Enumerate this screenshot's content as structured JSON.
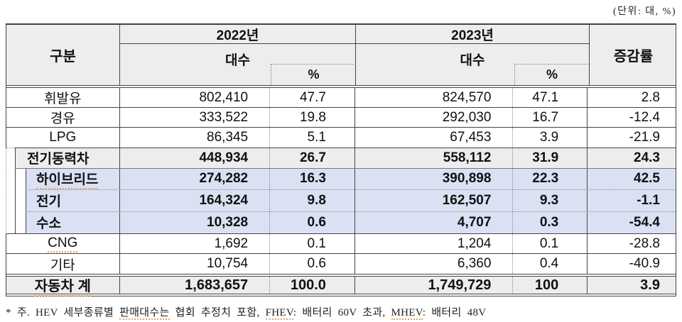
{
  "unit_label": "(단위: 대, %)",
  "table": {
    "header": {
      "category": "구분",
      "year_2022": "2022년",
      "year_2023": "2023년",
      "count_2022": "대수",
      "percent_2022": "%",
      "count_2023": "대수",
      "percent_2023": "%",
      "change_rate": "증감률"
    },
    "rows_top": [
      {
        "key": "gasoline",
        "label": "휘발유",
        "count_2022": "802,410",
        "pct_2022": "47.7",
        "count_2023": "824,570",
        "pct_2023": "47.1",
        "change": "2.8"
      },
      {
        "key": "diesel",
        "label": "경유",
        "count_2022": "333,522",
        "pct_2022": "19.8",
        "count_2023": "292,030",
        "pct_2023": "16.7",
        "change": "-12.4"
      },
      {
        "key": "lpg",
        "label": "LPG",
        "count_2022": "86,345",
        "pct_2022": "5.1",
        "count_2023": "67,453",
        "pct_2023": "3.9",
        "change": "-21.9"
      }
    ],
    "group_head": {
      "key": "ev-group",
      "label": "전기동력차",
      "count_2022": "448,934",
      "pct_2022": "26.7",
      "count_2023": "558,112",
      "pct_2023": "31.9",
      "change": "24.3"
    },
    "group_subs": [
      {
        "key": "hybrid",
        "label": "하이브리드",
        "underlined": true,
        "count_2022": "274,282",
        "pct_2022": "16.3",
        "count_2023": "390,898",
        "pct_2023": "22.3",
        "change": "42.5"
      },
      {
        "key": "electric",
        "label": "전기",
        "count_2022": "164,324",
        "pct_2022": "9.8",
        "count_2023": "162,507",
        "pct_2023": "9.3",
        "change": "-1.1"
      },
      {
        "key": "hydrogen",
        "label": "수소",
        "count_2022": "10,328",
        "pct_2022": "0.6",
        "count_2023": "4,707",
        "pct_2023": "0.3",
        "change": "-54.4"
      }
    ],
    "rows_bottom": [
      {
        "key": "cng",
        "label": "CNG",
        "underlined": true,
        "count_2022": "1,692",
        "pct_2022": "0.1",
        "count_2023": "1,204",
        "pct_2023": "0.1",
        "change": "-28.8"
      },
      {
        "key": "other",
        "label": "기타",
        "count_2022": "10,754",
        "pct_2022": "0.6",
        "count_2023": "6,360",
        "pct_2023": "0.4",
        "change": "-40.9"
      }
    ],
    "total_row": {
      "key": "total",
      "label": "자동차 계",
      "underlined": true,
      "count_2022": "1,683,657",
      "pct_2022": "100.0",
      "count_2023": "1,749,729",
      "pct_2023": "100",
      "change": "3.9"
    }
  },
  "note": {
    "segments": [
      {
        "text": "* 주. HEV 세부종류별 ",
        "underlined": false
      },
      {
        "text": "판매대수는",
        "underlined": true
      },
      {
        "text": " 협회 추정치 포함, ",
        "underlined": false
      },
      {
        "text": "FHEV",
        "underlined": true
      },
      {
        "text": ": 배터리 60V 초과, ",
        "underlined": false
      },
      {
        "text": "MHEV",
        "underlined": true
      },
      {
        "text": ": 배터리 48V",
        "underlined": false
      }
    ]
  },
  "colors": {
    "header_bg": "#ededed",
    "highlight_bg": "#dae1f3",
    "border": "#444444",
    "spell_underline": "#e2a568"
  }
}
